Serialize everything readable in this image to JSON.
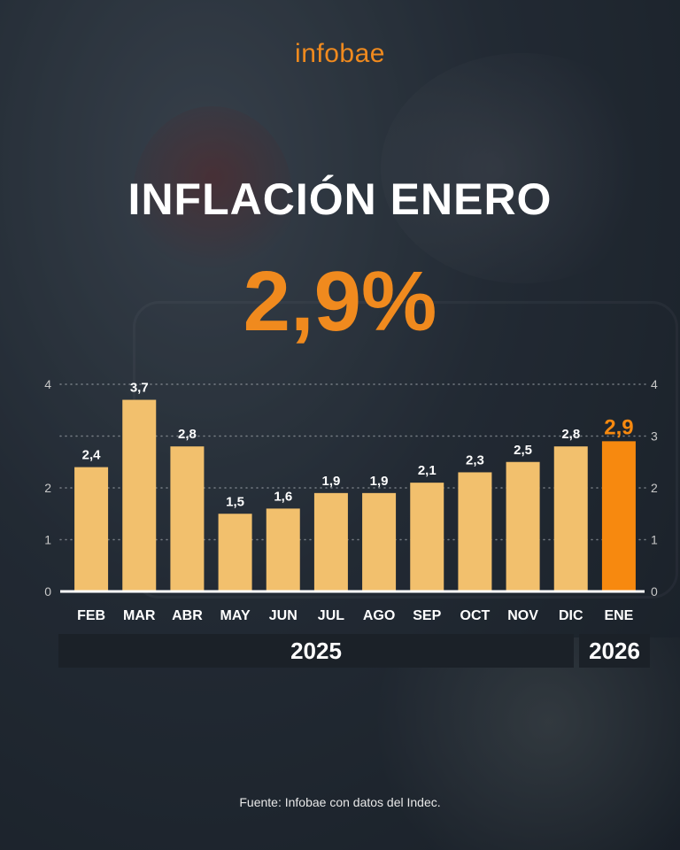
{
  "brand": {
    "logo": "infobae"
  },
  "header": {
    "title": "INFLACIÓN ENERO",
    "highlight_value": "2,9%"
  },
  "chart_data": {
    "type": "bar",
    "categories": [
      "FEB",
      "MAR",
      "ABR",
      "MAY",
      "JUN",
      "JUL",
      "AGO",
      "SEP",
      "OCT",
      "NOV",
      "DIC",
      "ENE"
    ],
    "values": [
      2.4,
      3.7,
      2.8,
      1.5,
      1.6,
      1.9,
      1.9,
      2.1,
      2.3,
      2.5,
      2.8,
      2.9
    ],
    "value_labels": [
      "2,4",
      "3,7",
      "2,8",
      "1,5",
      "1,6",
      "1,9",
      "1,9",
      "2,1",
      "2,3",
      "2,5",
      "2,8",
      "2,9"
    ],
    "highlight_index": 11,
    "ylim": [
      0,
      4
    ],
    "left_ticks": [
      0,
      1,
      2,
      4
    ],
    "right_ticks": [
      0,
      1,
      2,
      3,
      4
    ],
    "grid": true,
    "year_groups": [
      {
        "label": "2025",
        "months": [
          "FEB",
          "MAR",
          "ABR",
          "MAY",
          "JUN",
          "JUL",
          "AGO",
          "SEP",
          "OCT",
          "NOV",
          "DIC"
        ]
      },
      {
        "label": "2026",
        "months": [
          "ENE"
        ]
      }
    ],
    "colors": {
      "bar": "#f2c06d",
      "highlight": "#f7890f",
      "value_label": "#ffffff",
      "highlight_label": "#f7890f",
      "tick": "#c8c8c8",
      "grid": "#9aa0a6"
    }
  },
  "footer": {
    "source": "Fuente: Infobae con datos del Indec."
  }
}
